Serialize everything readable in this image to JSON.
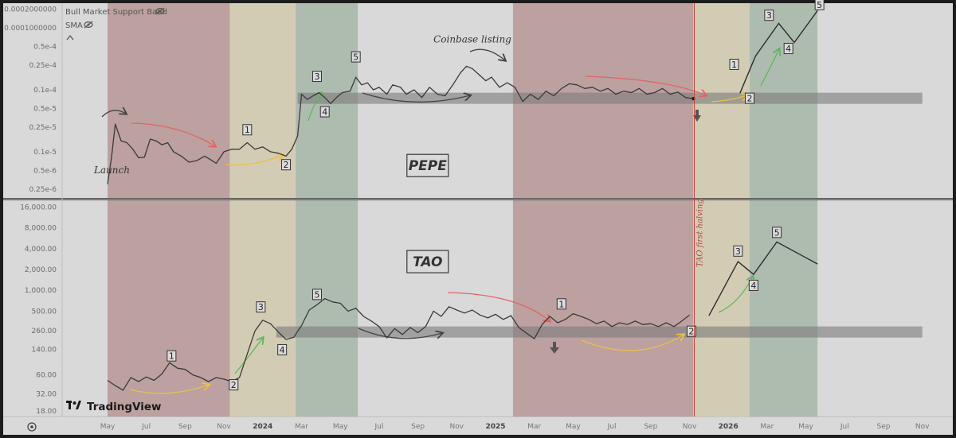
{
  "legend": {
    "indicator_1": "Bull Market Support Band",
    "indicator_2": "SMA",
    "eye_icon": "eye-slash-icon"
  },
  "branding": {
    "logo_text": "TradingView",
    "logo_icon": "tradingview-logo-icon"
  },
  "settings_icon": "gear-icon",
  "colors": {
    "red_zone": "#ab7c7c",
    "yellow_zone": "#cfc39e",
    "green_zone": "#93a994",
    "band": "#7c7c7c",
    "price": "#3a3a3a",
    "red_arrow": "#e06565",
    "yellow_arrow": "#e8c14a",
    "green_arrow": "#5cb85c"
  },
  "x_axis": {
    "labels": [
      "May",
      "Jul",
      "Sep",
      "Nov",
      "2024",
      "Mar",
      "May",
      "Jul",
      "Sep",
      "Nov",
      "2025",
      "Mar",
      "May",
      "Jul",
      "Sep",
      "Nov",
      "2026",
      "Mar",
      "May",
      "Jul",
      "Sep",
      "Nov"
    ],
    "positions": [
      0,
      2,
      4,
      6,
      8,
      10,
      12,
      14,
      16,
      18,
      20,
      22,
      24,
      26,
      28,
      30,
      32,
      34,
      36,
      38,
      40,
      42
    ]
  },
  "chart_data": [
    {
      "name": "PEPE",
      "type": "line",
      "scale": "log",
      "title": "PEPE",
      "y_tick_labels": [
        "0.0002000000",
        "0.0001000000",
        "0.5e-4",
        "0.25e-4",
        "0.1e-4",
        "0.5e-5",
        "0.25e-5",
        "0.1e-5",
        "0.5e-6",
        "0.25e-6"
      ],
      "y_tick_values": [
        0.0002,
        0.0001,
        5e-05,
        2.5e-05,
        1e-05,
        5e-06,
        2.5e-06,
        1e-06,
        5e-07,
        2.5e-07
      ],
      "ylim": [
        1.8e-07,
        0.00025
      ],
      "x_unit": "months since Apr 2023",
      "price": [
        [
          0,
          3e-07
        ],
        [
          0.2,
          8e-07
        ],
        [
          0.4,
          2.8e-06
        ],
        [
          0.7,
          1.5e-06
        ],
        [
          1,
          1.4e-06
        ],
        [
          1.3,
          1.1e-06
        ],
        [
          1.6,
          8e-07
        ],
        [
          1.9,
          8.2e-07
        ],
        [
          2.2,
          1.6e-06
        ],
        [
          2.5,
          1.5e-06
        ],
        [
          2.8,
          1.3e-06
        ],
        [
          3.1,
          1.4e-06
        ],
        [
          3.4,
          1e-06
        ],
        [
          3.8,
          8.5e-07
        ],
        [
          4.2,
          6.8e-07
        ],
        [
          4.6,
          7.2e-07
        ],
        [
          5,
          8.5e-07
        ],
        [
          5.3,
          7.5e-07
        ],
        [
          5.6,
          6.5e-07
        ],
        [
          6,
          1e-06
        ],
        [
          6.4,
          1.1e-06
        ],
        [
          6.8,
          1.1e-06
        ],
        [
          7.2,
          1.4e-06
        ],
        [
          7.6,
          1.1e-06
        ],
        [
          8,
          1.2e-06
        ],
        [
          8.4,
          1e-06
        ],
        [
          8.8,
          9.5e-07
        ],
        [
          9.2,
          8.5e-07
        ],
        [
          9.5,
          1.1e-06
        ],
        [
          9.8,
          1.8e-06
        ],
        [
          10,
          8.5e-06
        ],
        [
          10.3,
          7e-06
        ],
        [
          10.6,
          8e-06
        ],
        [
          10.9,
          9e-06
        ],
        [
          11.2,
          7.5e-06
        ],
        [
          11.5,
          6e-06
        ],
        [
          11.8,
          7.5e-06
        ],
        [
          12.1,
          9e-06
        ],
        [
          12.5,
          9.5e-06
        ],
        [
          12.8,
          1.6e-05
        ],
        [
          13.1,
          1.2e-05
        ],
        [
          13.4,
          1.3e-05
        ],
        [
          13.7,
          1e-05
        ],
        [
          14,
          1.1e-05
        ],
        [
          14.4,
          8.5e-06
        ],
        [
          14.7,
          1.2e-05
        ],
        [
          15.1,
          1.1e-05
        ],
        [
          15.4,
          8.5e-06
        ],
        [
          15.8,
          1e-05
        ],
        [
          16.2,
          7.5e-06
        ],
        [
          16.6,
          1.1e-05
        ],
        [
          17,
          8.5e-06
        ],
        [
          17.4,
          8e-06
        ],
        [
          17.8,
          1.2e-05
        ],
        [
          18.2,
          1.9e-05
        ],
        [
          18.5,
          2.4e-05
        ],
        [
          18.8,
          2.2e-05
        ],
        [
          19.2,
          1.7e-05
        ],
        [
          19.5,
          1.4e-05
        ],
        [
          19.8,
          1.6e-05
        ],
        [
          20.2,
          1.1e-05
        ],
        [
          20.6,
          1.3e-05
        ],
        [
          21,
          1.1e-05
        ],
        [
          21.4,
          6.5e-06
        ],
        [
          21.8,
          8.5e-06
        ],
        [
          22.2,
          7e-06
        ],
        [
          22.6,
          9.5e-06
        ],
        [
          23,
          8e-06
        ],
        [
          23.4,
          1.05e-05
        ],
        [
          23.8,
          1.25e-05
        ],
        [
          24.2,
          1.2e-05
        ],
        [
          24.6,
          1.05e-05
        ],
        [
          25,
          1.1e-05
        ],
        [
          25.4,
          9.5e-06
        ],
        [
          25.8,
          1.05e-05
        ],
        [
          26.2,
          8.5e-06
        ],
        [
          26.6,
          9.5e-06
        ],
        [
          27,
          9e-06
        ],
        [
          27.4,
          1.05e-05
        ],
        [
          27.8,
          8.5e-06
        ],
        [
          28.2,
          9e-06
        ],
        [
          28.6,
          1.05e-05
        ],
        [
          29,
          8.5e-06
        ],
        [
          29.4,
          9.2e-06
        ],
        [
          29.8,
          7.5e-06
        ],
        [
          30.2,
          7.2e-06
        ]
      ],
      "projection": [
        [
          32.6,
          8.8e-06
        ],
        [
          33.4,
          3.5e-05
        ],
        [
          34.6,
          0.000118
        ],
        [
          35.4,
          5.8e-05
        ],
        [
          36.6,
          0.00019
        ]
      ],
      "support_band": [
        [
          9.8,
          7.3e-06
        ],
        [
          42,
          6e-06
        ]
      ],
      "zones": [
        {
          "color": "red",
          "start": 0,
          "end": 6.3
        },
        {
          "color": "yellow",
          "start": 6.3,
          "end": 9.7
        },
        {
          "color": "green",
          "start": 9.7,
          "end": 12.9
        },
        {
          "color": "red",
          "start": 20.9,
          "end": 30.2
        },
        {
          "color": "yellow",
          "start": 30.3,
          "end": 33.1
        },
        {
          "color": "green",
          "start": 33.1,
          "end": 36.6
        }
      ],
      "annotations": [
        {
          "text": "Launch",
          "x": -0.7,
          "y": 4.5e-07
        },
        {
          "text": "Coinbase listing",
          "x": 16.8,
          "y": 5.8e-05
        },
        {
          "text": "PEPE",
          "x": 16.5,
          "y": 6e-07
        }
      ],
      "wave_labels": [
        {
          "text": "1",
          "x": 7.2,
          "y": 2.2e-06
        },
        {
          "text": "2",
          "x": 9.2,
          "y": 6e-07
        },
        {
          "text": "3",
          "x": 10.8,
          "y": 1.6e-05
        },
        {
          "text": "4",
          "x": 11.2,
          "y": 4.3e-06
        },
        {
          "text": "5",
          "x": 12.8,
          "y": 3.3e-05
        },
        {
          "text": "1",
          "x": 32.3,
          "y": 2.5e-05
        },
        {
          "text": "2",
          "x": 33.1,
          "y": 7.1e-06
        },
        {
          "text": "3",
          "x": 34.1,
          "y": 0.000155
        },
        {
          "text": "4",
          "x": 35.1,
          "y": 4.5e-05
        },
        {
          "text": "5",
          "x": 36.7,
          "y": 0.00023
        }
      ]
    },
    {
      "name": "TAO",
      "type": "line",
      "scale": "log",
      "title": "TAO",
      "y_tick_labels": [
        "16,000.00",
        "8,000.00",
        "4,000.00",
        "2,000.00",
        "1,000.00",
        "500.00",
        "260.00",
        "140.00",
        "60.00",
        "32.00",
        "18.00"
      ],
      "y_tick_values": [
        16000,
        8000,
        4000,
        2000,
        1000,
        500,
        260,
        140,
        60,
        32,
        18
      ],
      "ylim": [
        15,
        20000
      ],
      "x_unit": "months since Apr 2023",
      "price": [
        [
          0,
          50
        ],
        [
          0.4,
          42
        ],
        [
          0.8,
          36
        ],
        [
          1.2,
          55
        ],
        [
          1.6,
          48
        ],
        [
          2,
          56
        ],
        [
          2.4,
          50
        ],
        [
          2.8,
          62
        ],
        [
          3.2,
          90
        ],
        [
          3.6,
          75
        ],
        [
          4,
          72
        ],
        [
          4.4,
          60
        ],
        [
          4.8,
          55
        ],
        [
          5.2,
          48
        ],
        [
          5.6,
          55
        ],
        [
          6,
          52
        ],
        [
          6.4,
          48
        ],
        [
          6.8,
          55
        ],
        [
          7.2,
          120
        ],
        [
          7.6,
          260
        ],
        [
          8,
          370
        ],
        [
          8.4,
          330
        ],
        [
          8.8,
          250
        ],
        [
          9.2,
          195
        ],
        [
          9.6,
          210
        ],
        [
          10,
          310
        ],
        [
          10.4,
          520
        ],
        [
          10.8,
          620
        ],
        [
          11.2,
          760
        ],
        [
          11.6,
          680
        ],
        [
          12,
          650
        ],
        [
          12.4,
          500
        ],
        [
          12.8,
          550
        ],
        [
          13.2,
          420
        ],
        [
          13.6,
          360
        ],
        [
          14,
          300
        ],
        [
          14.4,
          205
        ],
        [
          14.8,
          280
        ],
        [
          15.2,
          230
        ],
        [
          15.6,
          290
        ],
        [
          16,
          245
        ],
        [
          16.4,
          300
        ],
        [
          16.8,
          500
        ],
        [
          17.2,
          420
        ],
        [
          17.6,
          580
        ],
        [
          18,
          520
        ],
        [
          18.4,
          470
        ],
        [
          18.8,
          520
        ],
        [
          19.2,
          440
        ],
        [
          19.6,
          400
        ],
        [
          20,
          450
        ],
        [
          20.4,
          380
        ],
        [
          20.8,
          430
        ],
        [
          21.2,
          290
        ],
        [
          21.6,
          240
        ],
        [
          22,
          200
        ],
        [
          22.4,
          320
        ],
        [
          22.8,
          420
        ],
        [
          23.2,
          340
        ],
        [
          23.6,
          380
        ],
        [
          24,
          460
        ],
        [
          24.4,
          420
        ],
        [
          24.8,
          380
        ],
        [
          25.2,
          330
        ],
        [
          25.6,
          360
        ],
        [
          26,
          300
        ],
        [
          26.4,
          340
        ],
        [
          26.8,
          320
        ],
        [
          27.2,
          360
        ],
        [
          27.6,
          320
        ],
        [
          28,
          330
        ],
        [
          28.4,
          300
        ],
        [
          28.8,
          340
        ],
        [
          29.2,
          300
        ],
        [
          29.6,
          360
        ],
        [
          30,
          440
        ]
      ],
      "projection": [
        [
          31,
          430
        ],
        [
          32.5,
          2600
        ],
        [
          33.3,
          1700
        ],
        [
          34.5,
          5000
        ],
        [
          36.6,
          2400
        ]
      ],
      "support_band": [
        [
          8.7,
          250
        ],
        [
          42,
          250
        ]
      ],
      "zones": [
        {
          "color": "red",
          "start": 0,
          "end": 6.3
        },
        {
          "color": "yellow",
          "start": 6.3,
          "end": 9.7
        },
        {
          "color": "green",
          "start": 9.7,
          "end": 12.9
        },
        {
          "color": "red",
          "start": 20.9,
          "end": 30.2
        },
        {
          "color": "yellow",
          "start": 30.3,
          "end": 33.1
        },
        {
          "color": "green",
          "start": 33.1,
          "end": 36.6
        }
      ],
      "vertical_line": {
        "x": 30.25,
        "label": "TAO first halving"
      },
      "annotations": [
        {
          "text": "TAO",
          "x": 16.5,
          "y": 2600
        }
      ],
      "wave_labels": [
        {
          "text": "1",
          "x": 3.3,
          "y": 110
        },
        {
          "text": "2",
          "x": 6.5,
          "y": 42
        },
        {
          "text": "3",
          "x": 7.9,
          "y": 560
        },
        {
          "text": "4",
          "x": 9.0,
          "y": 135
        },
        {
          "text": "5",
          "x": 10.8,
          "y": 850
        },
        {
          "text": "1",
          "x": 23.4,
          "y": 620
        },
        {
          "text": "2",
          "x": 30.1,
          "y": 250
        },
        {
          "text": "3",
          "x": 32.5,
          "y": 3600
        },
        {
          "text": "4",
          "x": 33.3,
          "y": 1150
        },
        {
          "text": "5",
          "x": 34.5,
          "y": 6700
        }
      ]
    }
  ]
}
